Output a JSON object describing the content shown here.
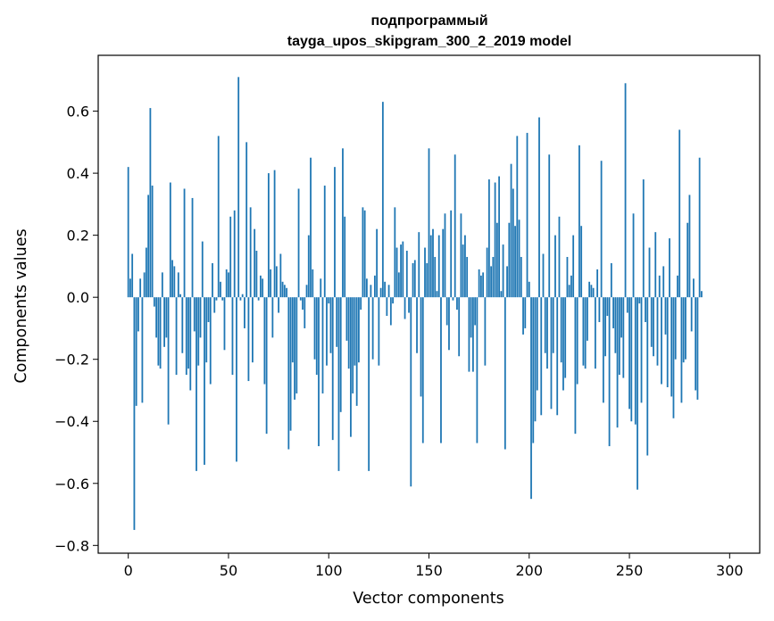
{
  "chart_data": {
    "type": "bar",
    "title_line1": "подпрограммый",
    "title_line2": "tayga_upos_skipgram_300_2_2019 model",
    "xlabel": "Vector components",
    "ylabel": "Components values",
    "xlim": [
      -15,
      315
    ],
    "ylim": [
      -0.825,
      0.78
    ],
    "x_ticks": [
      0,
      50,
      100,
      150,
      200,
      250,
      300
    ],
    "x_tick_labels": [
      "0",
      "50",
      "100",
      "150",
      "200",
      "250",
      "300"
    ],
    "y_ticks": [
      -0.8,
      -0.6,
      -0.4,
      -0.2,
      0.0,
      0.2,
      0.4,
      0.6
    ],
    "y_tick_labels": [
      "−0.8",
      "−0.6",
      "−0.4",
      "−0.2",
      "0.0",
      "0.2",
      "0.4",
      "0.6"
    ],
    "grid": false,
    "legend": "none",
    "bar_color": "#1f77b4",
    "values": [
      0.42,
      0.06,
      0.14,
      -0.75,
      -0.35,
      -0.11,
      0.06,
      -0.34,
      0.08,
      0.16,
      0.33,
      0.61,
      0.36,
      -0.03,
      -0.13,
      -0.22,
      -0.23,
      0.08,
      -0.16,
      -0.13,
      -0.41,
      0.37,
      0.12,
      0.1,
      -0.25,
      0.08,
      0.01,
      -0.18,
      0.35,
      -0.25,
      -0.23,
      -0.3,
      0.32,
      -0.11,
      -0.56,
      -0.22,
      -0.13,
      0.18,
      -0.54,
      -0.21,
      -0.08,
      -0.28,
      0.11,
      -0.05,
      -0.01,
      0.52,
      0.05,
      -0.01,
      -0.17,
      0.09,
      0.08,
      0.26,
      -0.25,
      0.28,
      -0.53,
      0.71,
      -0.01,
      0.01,
      -0.1,
      0.5,
      -0.27,
      0.29,
      -0.21,
      0.22,
      0.15,
      -0.01,
      0.07,
      0.06,
      -0.28,
      -0.44,
      0.4,
      0.09,
      -0.13,
      0.41,
      0.1,
      -0.05,
      0.14,
      0.05,
      0.04,
      0.03,
      -0.49,
      -0.43,
      -0.21,
      -0.33,
      -0.31,
      0.35,
      -0.01,
      -0.04,
      -0.1,
      0.04,
      0.2,
      0.45,
      0.09,
      -0.2,
      -0.25,
      -0.48,
      0.06,
      -0.31,
      0.36,
      -0.22,
      -0.02,
      -0.18,
      -0.46,
      0.42,
      -0.16,
      -0.56,
      -0.37,
      0.48,
      0.26,
      -0.14,
      -0.23,
      -0.45,
      -0.31,
      -0.22,
      -0.35,
      -0.21,
      -0.04,
      0.29,
      0.28,
      0.06,
      -0.56,
      0.04,
      -0.2,
      0.07,
      0.22,
      -0.22,
      0.03,
      0.63,
      0.05,
      -0.06,
      0.04,
      -0.09,
      -0.02,
      0.29,
      0.16,
      0.08,
      0.17,
      0.18,
      -0.07,
      0.15,
      -0.05,
      -0.61,
      0.11,
      0.12,
      -0.18,
      0.21,
      -0.32,
      -0.47,
      0.16,
      0.11,
      0.48,
      0.2,
      0.22,
      0.13,
      0.02,
      0.2,
      -0.47,
      0.22,
      0.27,
      -0.09,
      -0.17,
      0.28,
      -0.01,
      0.46,
      -0.04,
      -0.19,
      0.27,
      0.17,
      0.2,
      0.13,
      -0.24,
      -0.13,
      -0.24,
      -0.09,
      -0.47,
      0.09,
      0.07,
      0.08,
      -0.22,
      0.16,
      0.38,
      0.1,
      0.13,
      0.37,
      0.24,
      0.39,
      0.02,
      0.17,
      -0.49,
      0.1,
      0.24,
      0.43,
      0.35,
      0.23,
      0.52,
      0.25,
      0.13,
      -0.12,
      -0.1,
      0.53,
      0.05,
      -0.65,
      -0.47,
      -0.4,
      -0.3,
      0.58,
      -0.38,
      0.14,
      -0.18,
      -0.23,
      0.46,
      -0.36,
      -0.18,
      0.2,
      -0.38,
      0.26,
      -0.21,
      -0.3,
      -0.26,
      0.13,
      0.04,
      0.07,
      0.2,
      -0.44,
      -0.28,
      0.49,
      0.23,
      -0.22,
      -0.23,
      -0.14,
      0.05,
      0.04,
      0.03,
      -0.23,
      0.09,
      -0.08,
      0.44,
      -0.34,
      -0.19,
      -0.06,
      -0.48,
      0.11,
      -0.1,
      -0.18,
      -0.42,
      -0.25,
      -0.13,
      -0.26,
      0.69,
      -0.05,
      -0.36,
      -0.4,
      0.27,
      -0.41,
      -0.62,
      -0.02,
      -0.34,
      0.38,
      -0.08,
      -0.51,
      0.16,
      -0.16,
      -0.19,
      0.21,
      -0.22,
      0.07,
      -0.28,
      0.1,
      -0.12,
      -0.29,
      0.19,
      -0.32,
      -0.39,
      -0.2,
      0.07,
      0.54,
      -0.34,
      -0.21,
      -0.2,
      0.24,
      0.33,
      -0.11,
      0.06,
      -0.3,
      -0.33,
      0.45,
      0.02
    ]
  }
}
